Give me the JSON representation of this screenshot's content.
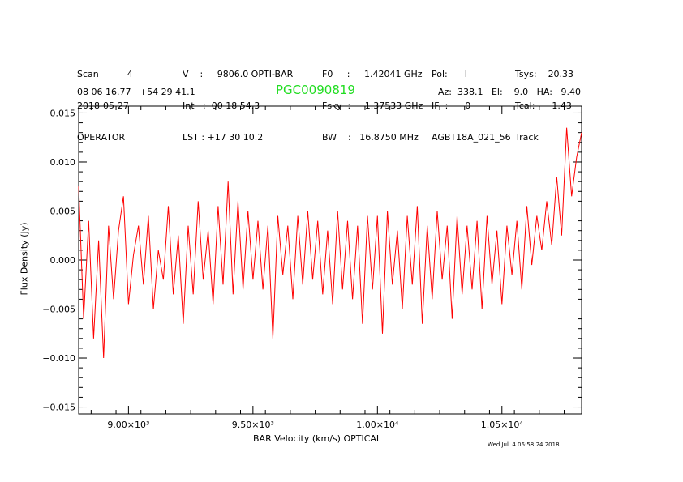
{
  "header": {
    "col1": [
      "Scan          4",
      "2018-05-27",
      "OPERATOR"
    ],
    "col2": [
      "V    :     9806.0 OPTI-BAR",
      "Int   :  00 18 54.3",
      "LST : +17 30 10.2"
    ],
    "col3": [
      "F0     :     1.42041 GHz",
      "Fsky  :     1.37533 GHz",
      "BW    :   16.8750 MHz"
    ],
    "col4": [
      "Pol:      I",
      "IF  :      0",
      "AGBT18A_021_56"
    ],
    "col5": [
      "Tsys:    20.33",
      "Tcal:      1.43",
      "Track"
    ],
    "coords": "08 06 16.77   +54 29 41.1",
    "source": "PGC0090819",
    "azel": "Az:  338.1   El:    9.0   HA:   9.40"
  },
  "footer": {
    "timestamp": "Wed Jul  4 06:58:24 2018"
  },
  "colors": {
    "series": "#ff0000",
    "source_name": "#22dd22",
    "axes": "#000000"
  },
  "chart_data": {
    "type": "line",
    "xlabel": "BAR Velocity (km/s) OPTICAL",
    "ylabel": "Flux Density (Jy)",
    "xlim": [
      8800,
      10820
    ],
    "ylim": [
      -0.0157,
      0.0157
    ],
    "xticks": [
      9000,
      9500,
      10000,
      10500
    ],
    "xtick_labels": [
      "9.00×10³",
      "9.50×10³",
      "1.00×10⁴",
      "1.05×10⁴"
    ],
    "yticks": [
      -0.015,
      -0.01,
      -0.005,
      0,
      0.005,
      0.01,
      0.015
    ],
    "ytick_labels": [
      "−0.015",
      "−0.010",
      "−0.005",
      "0.000",
      "0.005",
      "0.010",
      "0.015"
    ],
    "series": [
      {
        "x": [
          8800,
          8820,
          8840,
          8860,
          8880,
          8900,
          8920,
          8940,
          8960,
          8980,
          9000,
          9020,
          9040,
          9060,
          9080,
          9100,
          9120,
          9140,
          9160,
          9180,
          9200,
          9220,
          9240,
          9260,
          9280,
          9300,
          9320,
          9340,
          9360,
          9380,
          9400,
          9420,
          9440,
          9460,
          9480,
          9500,
          9520,
          9540,
          9560,
          9580,
          9600,
          9620,
          9640,
          9660,
          9680,
          9700,
          9720,
          9740,
          9760,
          9780,
          9800,
          9820,
          9840,
          9860,
          9880,
          9900,
          9920,
          9940,
          9960,
          9980,
          10000,
          10020,
          10040,
          10060,
          10080,
          10100,
          10120,
          10140,
          10160,
          10180,
          10200,
          10220,
          10240,
          10260,
          10280,
          10300,
          10320,
          10340,
          10360,
          10380,
          10400,
          10420,
          10440,
          10460,
          10480,
          10500,
          10520,
          10540,
          10560,
          10580,
          10600,
          10620,
          10640,
          10660,
          10680,
          10700,
          10720,
          10740,
          10760,
          10780,
          10800,
          10820
        ],
        "y": [
          0.0075,
          -0.006,
          0.004,
          -0.008,
          0.002,
          -0.01,
          0.0035,
          -0.004,
          0.003,
          0.0065,
          -0.0045,
          0.0005,
          0.0035,
          -0.0025,
          0.0045,
          -0.005,
          0.001,
          -0.002,
          0.0055,
          -0.0035,
          0.0025,
          -0.0065,
          0.0035,
          -0.0035,
          0.006,
          -0.002,
          0.003,
          -0.0045,
          0.0055,
          -0.0025,
          0.008,
          -0.0035,
          0.006,
          -0.003,
          0.005,
          -0.002,
          0.004,
          -0.003,
          0.0035,
          -0.008,
          0.0045,
          -0.0015,
          0.0035,
          -0.004,
          0.0045,
          -0.0025,
          0.005,
          -0.002,
          0.004,
          -0.0035,
          0.003,
          -0.0045,
          0.005,
          -0.003,
          0.004,
          -0.004,
          0.0035,
          -0.0065,
          0.0045,
          -0.003,
          0.0045,
          -0.0075,
          0.005,
          -0.0025,
          0.003,
          -0.005,
          0.0045,
          -0.0025,
          0.0055,
          -0.0065,
          0.0035,
          -0.004,
          0.005,
          -0.002,
          0.0035,
          -0.006,
          0.0045,
          -0.0035,
          0.0035,
          -0.003,
          0.004,
          -0.005,
          0.0045,
          -0.0025,
          0.003,
          -0.0045,
          0.0035,
          -0.0015,
          0.004,
          -0.003,
          0.0055,
          -0.0005,
          0.0045,
          0.001,
          0.006,
          0.0015,
          0.0085,
          0.0025,
          0.0135,
          0.0065,
          0.0105,
          0.013
        ]
      }
    ]
  }
}
